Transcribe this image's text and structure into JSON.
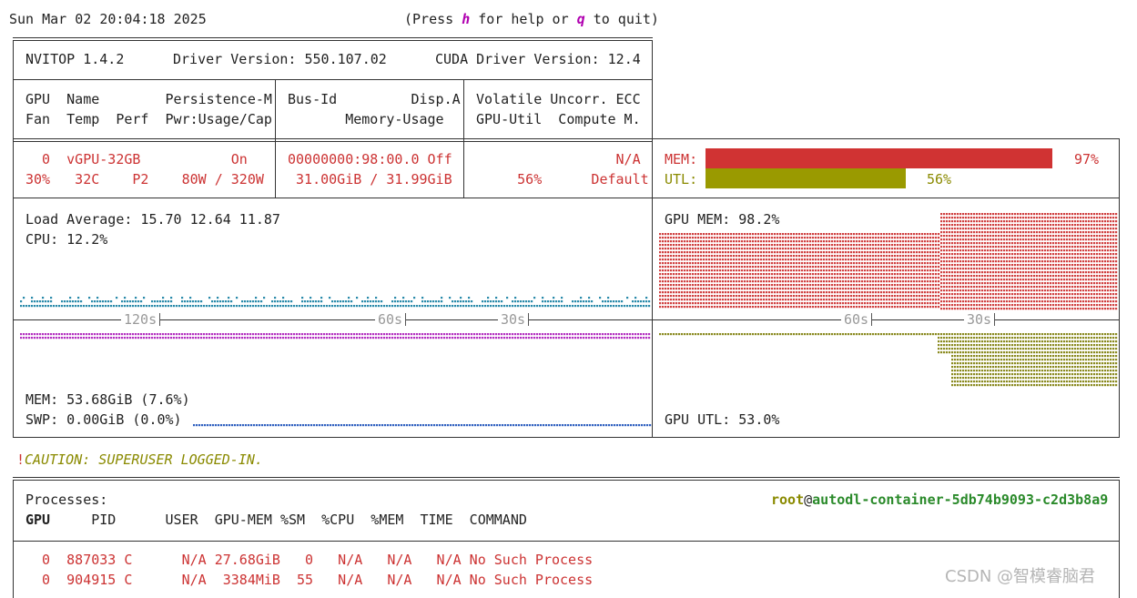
{
  "header": {
    "datetime": "Sun Mar 02 20:04:18 2025",
    "help_prefix": "(Press ",
    "help_key": "h",
    "help_mid": " for help or ",
    "quit_key": "q",
    "help_suffix": " to quit)"
  },
  "driver": {
    "nvitop": "NVITOP 1.4.2",
    "driver_version": "Driver Version: 550.107.02",
    "cuda_version": "CUDA Driver Version: 12.4"
  },
  "columns": {
    "row1_a": "GPU  Name        Persistence-M",
    "row2_a": "Fan  Temp  Perf  Pwr:Usage/Cap",
    "row1_b": "Bus-Id         Disp.A",
    "row2_b": "       Memory-Usage",
    "row1_c": "Volatile Uncorr. ECC",
    "row2_c": "GPU-Util  Compute M."
  },
  "gpu": {
    "row1_a": "  0  vGPU-32GB           On",
    "row2_a": "30%   32C    P2    80W / 320W",
    "row1_b": "00000000:98:00.0 Off",
    "row2_b": " 31.00GiB / 31.99GiB",
    "row1_c": "                 N/A",
    "row2_c": "     56%      Default",
    "mem_label": "MEM:",
    "mem_pct": "97%",
    "mem_value": 0.97,
    "utl_label": "UTL:",
    "utl_pct": "56%",
    "utl_value": 0.56
  },
  "host": {
    "load": "Load Average: 15.70 12.64 11.87",
    "cpu": "CPU: 12.2%",
    "mem": "MEM: 53.68GiB (7.6%)",
    "swp": "SWP: 0.00GiB (0.0%)",
    "tick_120": "120s",
    "tick_60": "60s",
    "tick_30": "30s"
  },
  "gpu_history": {
    "mem": "GPU MEM: 98.2%",
    "utl": "GPU UTL: 53.0%",
    "tick_60": "60s",
    "tick_30": "30s"
  },
  "caution": {
    "bang": "!",
    "text": "CAUTION: SUPERUSER LOGGED-IN."
  },
  "processes": {
    "title": "Processes:",
    "user_host_user": "root",
    "user_host_at": "@",
    "user_host_host": "autodl-container-5db74b9093-c2d3b8a9",
    "headers": "GPU     PID      USER  GPU-MEM %SM  %CPU  %MEM  TIME  COMMAND",
    "header_gpu": "GPU",
    "header_rest": "     PID      USER  GPU-MEM %SM  %CPU  %MEM  TIME  ",
    "header_cmd": "COMMAND",
    "rows": [
      {
        "left": "  0  887033 C      N/A 27.68GiB   0   N/A   N/A   N/A ",
        "cmd": "No Such Process"
      },
      {
        "left": "  0  904915 C      N/A  3384MiB  55   N/A   N/A   N/A ",
        "cmd": "No Such Process"
      }
    ]
  },
  "watermark": "CSDN @智模睿脑君",
  "colors": {
    "mem_bar": "#d03333",
    "utl_bar": "#9a9a00",
    "cpu_dots": "#2a8aaa",
    "mem_dots": "#b32fc0",
    "swap_dots": "#3060c0",
    "gpu_mem_dots": "#d04040",
    "gpu_utl_dots": "#8a8a20"
  }
}
